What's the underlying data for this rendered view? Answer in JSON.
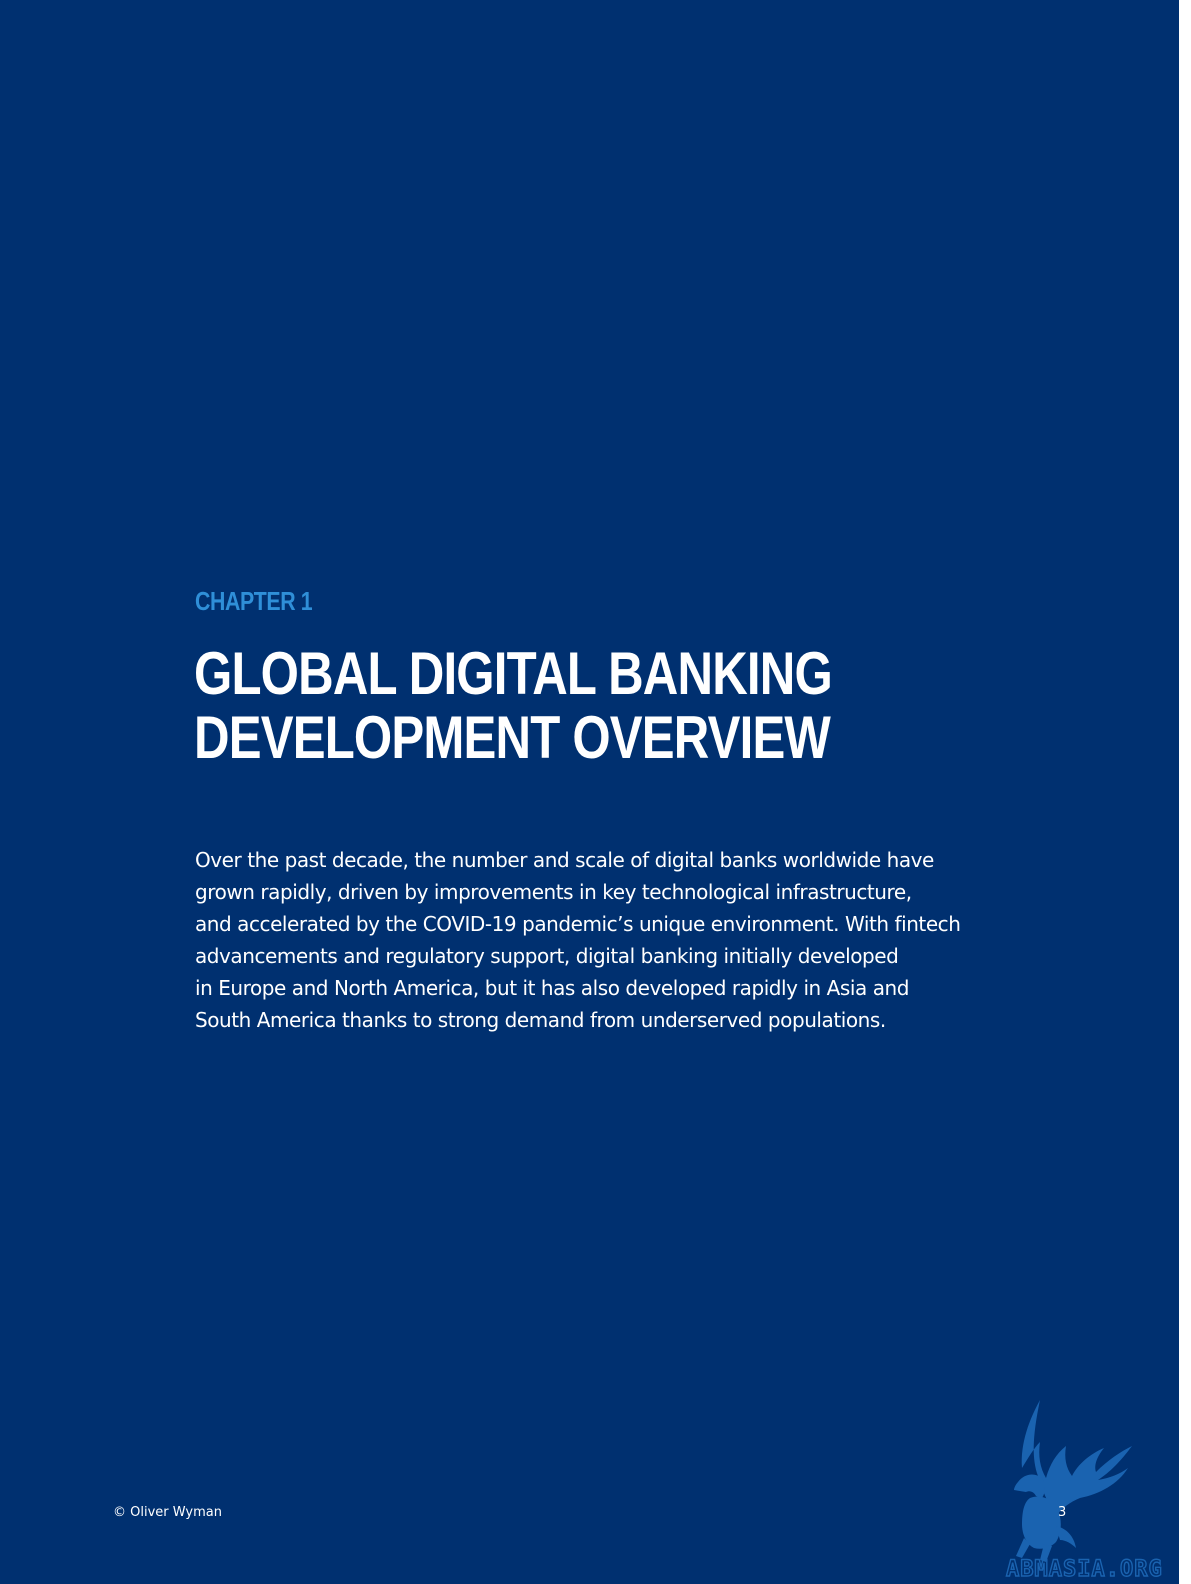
{
  "chapter": {
    "label": "CHAPTER 1",
    "title_lines": [
      "GLOBAL DIGITAL BANKING",
      "DEVELOPMENT OVERVIEW"
    ]
  },
  "intro": {
    "lines": [
      "Over the past decade, the number and scale of digital banks worldwide have",
      "grown rapidly, driven by improvements in key technological infrastructure,",
      "and accelerated by the COVID-19 pandemic’s unique environment. With fintech",
      "advancements and regulatory support, digital banking initially developed",
      "in Europe and North America, but it has also developed rapidly in Asia and",
      "South America thanks to strong demand from underserved populations."
    ]
  },
  "footer": {
    "copyright": "© Oliver Wyman",
    "page_number": "3"
  },
  "watermark": {
    "text": "ABMASIA.ORG",
    "icon": "griffin-logo-icon"
  },
  "colors": {
    "background": "#003070",
    "accent": "#2f8fd8",
    "text": "#ffffff",
    "watermark": "#1a63b0"
  }
}
